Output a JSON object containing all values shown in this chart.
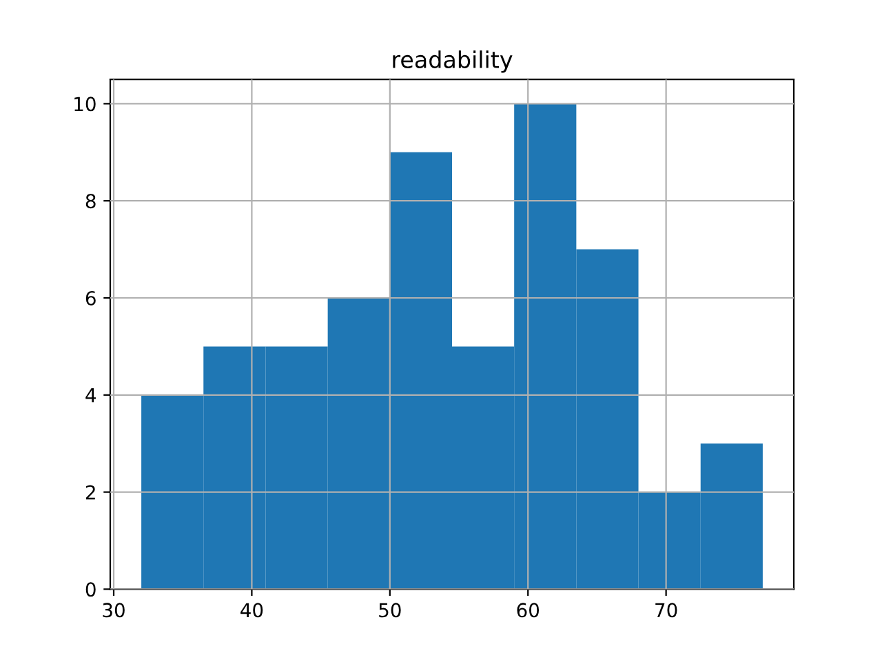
{
  "chart_data": {
    "type": "histogram",
    "title": "readability",
    "bins": [
      32,
      36.5,
      41,
      45.5,
      50,
      54.5,
      59,
      63.5,
      68,
      72.5,
      77
    ],
    "values": [
      4,
      5,
      5,
      6,
      9,
      5,
      10,
      7,
      2,
      3
    ],
    "color": "#1f77b4",
    "xlim": [
      29.75,
      79.25
    ],
    "xticks": [
      30,
      40,
      50,
      60,
      70
    ],
    "ylim": [
      0,
      10.5
    ],
    "yticks": [
      0,
      2,
      4,
      6,
      8,
      10
    ],
    "grid": true
  }
}
